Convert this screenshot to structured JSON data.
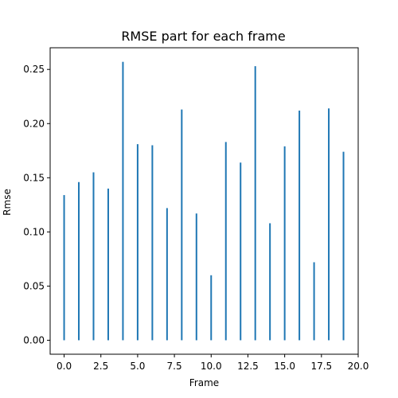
{
  "chart_data": {
    "type": "bar",
    "title": "RMSE part for each frame",
    "xlabel": "Frame",
    "ylabel": "Rmse",
    "x": [
      0,
      1,
      2,
      3,
      4,
      5,
      6,
      7,
      8,
      9,
      10,
      11,
      12,
      13,
      14,
      15,
      16,
      17,
      18,
      19
    ],
    "values": [
      0.134,
      0.146,
      0.155,
      0.14,
      0.257,
      0.181,
      0.18,
      0.122,
      0.213,
      0.117,
      0.06,
      0.183,
      0.164,
      0.253,
      0.108,
      0.179,
      0.212,
      0.072,
      0.214,
      0.174
    ],
    "xlim": [
      -0.95,
      20.0
    ],
    "ylim": [
      -0.0129,
      0.27
    ],
    "xticks": [
      0,
      2.5,
      5,
      7.5,
      10,
      12.5,
      15,
      17.5,
      20
    ],
    "xtick_labels": [
      "0.0",
      "2.5",
      "5.0",
      "7.5",
      "10.0",
      "12.5",
      "15.0",
      "17.5",
      "20.0"
    ],
    "yticks": [
      0,
      0.05,
      0.1,
      0.15,
      0.2,
      0.25
    ],
    "ytick_labels": [
      "0.00",
      "0.05",
      "0.10",
      "0.15",
      "0.20",
      "0.25"
    ],
    "bar_color": "#1f77b4",
    "grid": false,
    "legend": "none"
  }
}
